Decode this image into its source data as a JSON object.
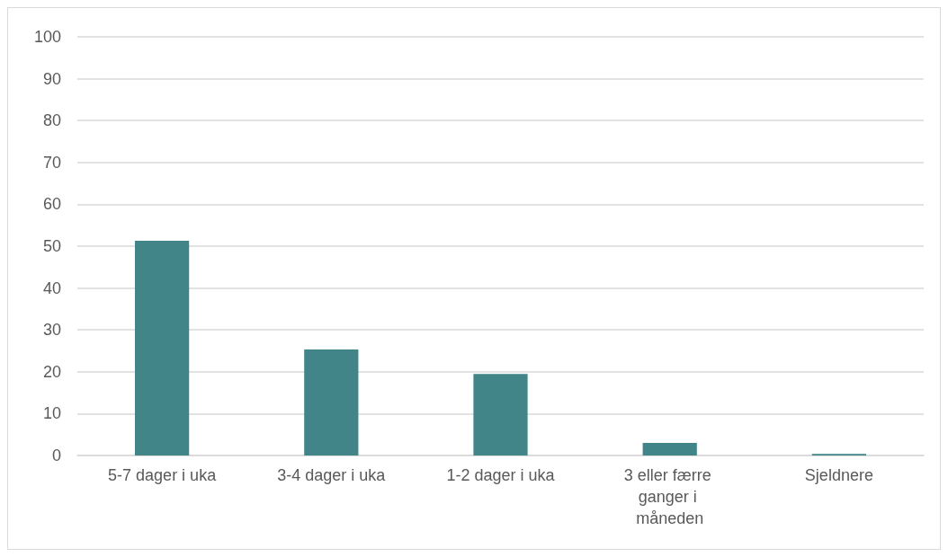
{
  "chart_data": {
    "type": "bar",
    "categories": [
      "5-7 dager i uka",
      "3-4 dager i uka",
      "1-2 dager i uka",
      "3 eller færre ganger i måneden",
      "Sjeldnere"
    ],
    "values": [
      51.3,
      25.3,
      19.5,
      3.0,
      0.4
    ],
    "color": "#418589",
    "ylim": [
      0,
      100
    ],
    "yticks": [
      0,
      10,
      20,
      30,
      40,
      50,
      60,
      70,
      80,
      90,
      100
    ],
    "grid": "y"
  }
}
